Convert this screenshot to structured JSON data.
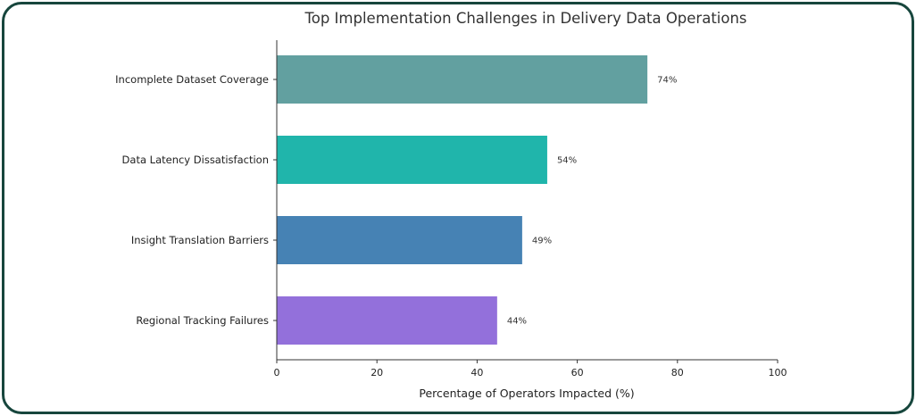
{
  "chart_data": {
    "type": "bar",
    "orientation": "horizontal",
    "title": "Top Implementation Challenges in Delivery Data Operations",
    "xlabel": "Percentage of Operators Impacted (%)",
    "ylabel": "",
    "xlim": [
      0,
      100
    ],
    "xticks": [
      0,
      20,
      40,
      60,
      80,
      100
    ],
    "grid": false,
    "categories": [
      "Incomplete Dataset Coverage",
      "Data Latency Dissatisfaction",
      "Insight Translation Barriers",
      "Regional Tracking Failures"
    ],
    "values": [
      74,
      54,
      49,
      44
    ],
    "data_labels": [
      "74%",
      "54%",
      "49%",
      "44%"
    ],
    "colors": [
      "#62a0a0",
      "#20b5ab",
      "#4682b4",
      "#9370db"
    ]
  }
}
